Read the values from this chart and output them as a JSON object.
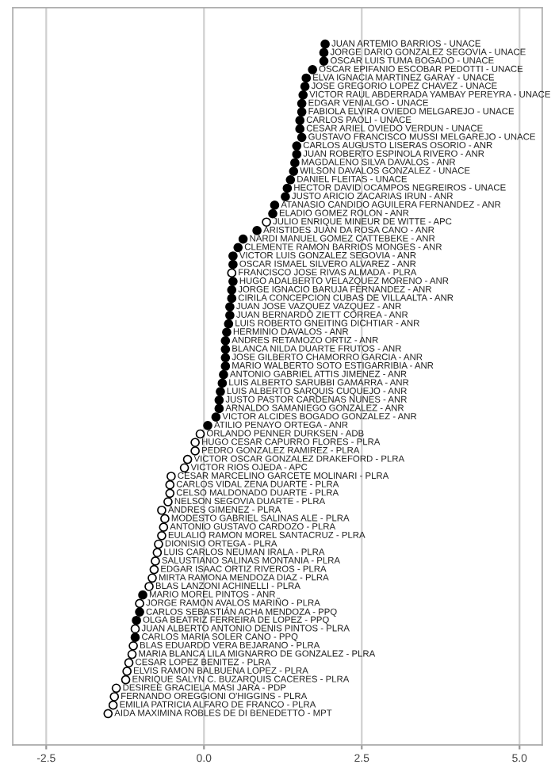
{
  "chart_data": {
    "type": "scatter",
    "orientation": "horizontal",
    "marker": "circle",
    "grid": "x",
    "tick_labels": "x",
    "xlim": [
      -3.03,
      5.36
    ],
    "xticks": [
      {
        "value": -2.5,
        "label": "-2.5"
      },
      {
        "value": 0,
        "label": "0.0"
      },
      {
        "value": 2.5,
        "label": "2.5"
      },
      {
        "value": 5,
        "label": "5.0"
      }
    ],
    "categories": [
      "JUAN ARTEMIO BARRIOS - UNACE",
      "JORGE DARIO GONZALEZ SEGOVIA - UNACE",
      "OSCAR LUIS TUMA BOGADO - UNACE",
      "OSCAR EPIFANIO ESCOBAR PEDOTTI - UNACE",
      "ELVA IGNACIA MARTINEZ GARAY - UNACE",
      "JOSE GREGORIO LOPEZ CHAVEZ - UNACE",
      "VICTOR RAUL ABDERRADA YAMBAY PEREYRA - UNACE",
      "EDGAR VENIALGO - UNACE",
      "FABIOLA ELVIRA OVIEDO MELGAREJO - UNACE",
      "CARLOS PAOLI - UNACE",
      "CESAR ARIEL OVIEDO VERDUN - UNACE",
      "GUSTAVO FRANCISCO MUSSI MELGAREJO - UNACE",
      "CARLOS AUGUSTO LISERAS OSORIO - ANR",
      "JUAN ROBERTO ESPINOLA RIVERO - ANR",
      "MAGDALENO SILVA DAVALOS - ANR",
      "WILSON DAVALOS GONZALEZ - UNACE",
      "DANIEL FLEITAS - UNACE",
      "HECTOR DAVID OCAMPOS NEGREIROS - UNACE",
      "JUSTO ARICIO ZACARIAS IRUN - ANR",
      "ATANASIO CANDIDO AGUILERA FERNANDEZ - ANR",
      "ELADIO GOMEZ ROLON - ANR",
      "JULIO ENRIQUE MINEUR DE WITTE - APC",
      "ARISTIDES JUAN DA ROSA CANO - ANR",
      "NARDI MANUEL GOMEZ CATTEBEKE - ANR",
      "CLEMENTE RAMON BARRIOS MONGES - ANR",
      "VICTOR LUIS GONZALEZ SEGOVIA - ANR",
      "OSCAR ISMAEL SILVERO ALVAREZ - ANR",
      "FRANCISCO JOSE RIVAS ALMADA - PLRA",
      "HUGO ADALBERTO VELAZQUEZ MORENO - ANR",
      "JORGE IGNACIO BARUJA FERNANDEZ - ANR",
      "CIRILA CONCEPCION CUBAS DE VILLAALTA - ANR",
      "JUAN JOSE VAZQUEZ VAZQUEZ - ANR",
      "JUAN BERNARDO ZIETT CORREA - ANR",
      "LUIS ROBERTO GNEITING DICHTIAR - ANR",
      "HERMINIO DAVALOS - ANR",
      "ANDRES RETAMOZO ORTIZ - ANR",
      "BLANCA NILDA DUARTE FRUTOS - ANR",
      "JOSE GILBERTO CHAMORRO GARCIA - ANR",
      "MARIO WALBERTO SOTO ESTIGARRIBIA - ANR",
      "ANTONIO GABRIEL ATTIS JIMENEZ - ANR",
      "LUIS ALBERTO SARUBBI GAMARRA - ANR",
      "LUIS ALBERTO SARQUIS CUQUEJO - ANR",
      "JUSTO PASTOR CARDENAS NUNES - ANR",
      "ARNALDO SAMANIEGO GONZALEZ - ANR",
      "VICTOR ALCIDES BOGADO GONZALEZ - ANR",
      "ATILIO PENAYO ORTEGA - ANR",
      "ORLANDO PENNER DURKSEN - ADB",
      "HUGO CESAR CAPURRO FLORES - PLRA",
      "PEDRO GONZALEZ RAMIREZ - PLRA",
      "VICTOR OSCAR GONZALEZ DRAKEFORD - PLRA",
      "VICTOR RIOS OJEDA - APC",
      "CESAR MARCELINO GARCETE MOLINARI - PLRA",
      "CARLOS VIDAL ZENA DUARTE - PLRA",
      "CELSO MALDONADO DUARTE - PLRA",
      "NELSON SEGOVIA DUARTE - PLRA",
      "ANDRES GIMENEZ - PLRA",
      "MODESTO GABRIEL SALINAS ALE - PLRA",
      "ANTONIO GUSTAVO CARDOZO - PLRA",
      "EULALIO RAMON MOREL SANTACRUZ - PLRA",
      "DIONISIO ORTEGA - PLRA",
      "LUIS CARLOS NEUMAN IRALA - PLRA",
      "SALUSTIANO SALINAS MONTANIA - PLRA",
      "EDGAR ISAAC ORTIZ RIVEROS - PLRA",
      "MIRTA RAMONA MENDOZA DIAZ - PLRA",
      "BLAS LANZONI ACHINELLI - PLRA",
      "MARIO MOREL PINTOS - ANR",
      "JORGE RAMON AVALOS MARIÑO - PLRA",
      "CARLOS SEBASTIÁN ACHA MENDOZA - PPQ",
      "OLGA BEATRIZ FERREIRA DE LOPEZ - PPQ",
      "JUAN ALBERTO ANTONIO DENIS PINTOS - PLRA",
      "CARLOS MARIA SOLER CANO - PPQ",
      "BLAS EDUARDO VERA BEJARANO - PLRA",
      "MARIA BLANCA LILA MIGNARRO DE GONZALEZ - PLRA",
      "CESAR LOPEZ BENITEZ - PLRA",
      "ELVIS RAMON BALBUENA LOPEZ - PLRA",
      "ENRIQUE SALYN C. BUZARQUIS CACERES - PLRA",
      "DESIREE GRACIELA MASI JARA - PDP",
      "FERNANDO OREGGIONI O'HIGGINS - PLRA",
      "EMILIA PATRICIA ALFARO DE FRANCO - PLRA",
      "AIDA MAXIMINA ROBLES DE DI BENEDETTO - MPT"
    ],
    "values": [
      1.92,
      1.9,
      1.9,
      1.72,
      1.62,
      1.6,
      1.57,
      1.55,
      1.55,
      1.52,
      1.52,
      1.55,
      1.47,
      1.47,
      1.44,
      1.42,
      1.37,
      1.32,
      1.29,
      1.12,
      1.09,
      0.99,
      0.84,
      0.62,
      0.54,
      0.46,
      0.46,
      0.44,
      0.46,
      0.44,
      0.44,
      0.41,
      0.41,
      0.39,
      0.36,
      0.34,
      0.34,
      0.34,
      0.34,
      0.31,
      0.29,
      0.26,
      0.24,
      0.24,
      0.19,
      0.06,
      -0.06,
      -0.14,
      -0.14,
      -0.26,
      -0.31,
      -0.52,
      -0.54,
      -0.54,
      -0.57,
      -0.67,
      -0.62,
      -0.64,
      -0.67,
      -0.72,
      -0.74,
      -0.77,
      -0.79,
      -0.82,
      -0.87,
      -0.97,
      -1.02,
      -1.02,
      -1.07,
      -1.09,
      -1.09,
      -1.12,
      -1.14,
      -1.19,
      -1.22,
      -1.24,
      -1.39,
      -1.42,
      -1.44,
      -1.52
    ],
    "colors": [
      "#000000",
      "#000000",
      "#000000",
      "#000000",
      "#000000",
      "#000000",
      "#000000",
      "#000000",
      "#000000",
      "#000000",
      "#000000",
      "#000000",
      "#000000",
      "#000000",
      "#000000",
      "#000000",
      "#000000",
      "#000000",
      "#000000",
      "#000000",
      "#000000",
      "#ffffff",
      "#000000",
      "#000000",
      "#000000",
      "#000000",
      "#000000",
      "#ffffff",
      "#000000",
      "#000000",
      "#000000",
      "#000000",
      "#000000",
      "#000000",
      "#000000",
      "#000000",
      "#000000",
      "#000000",
      "#000000",
      "#000000",
      "#000000",
      "#000000",
      "#000000",
      "#000000",
      "#000000",
      "#000000",
      "#ffffff",
      "#ffffff",
      "#ffffff",
      "#ffffff",
      "#ffffff",
      "#ffffff",
      "#ffffff",
      "#ffffff",
      "#ffffff",
      "#ffffff",
      "#ffffff",
      "#ffffff",
      "#ffffff",
      "#ffffff",
      "#ffffff",
      "#ffffff",
      "#ffffff",
      "#ffffff",
      "#ffffff",
      "#000000",
      "#ffffff",
      "#000000",
      "#000000",
      "#ffffff",
      "#000000",
      "#ffffff",
      "#ffffff",
      "#ffffff",
      "#ffffff",
      "#ffffff",
      "#ffffff",
      "#ffffff",
      "#ffffff",
      "#ffffff"
    ]
  }
}
